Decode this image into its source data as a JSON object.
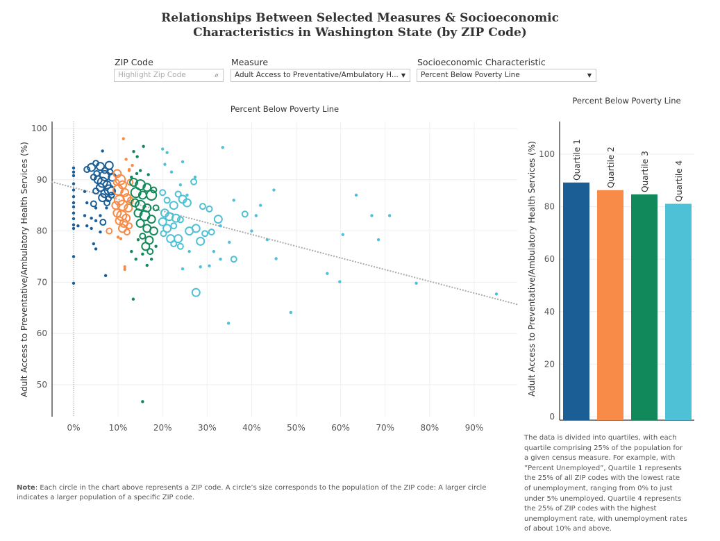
{
  "title": "Relationships Between Selected Measures & Socioeconomic Characteristics in Washington State (by ZIP Code)",
  "filters": {
    "zip": {
      "label": "ZIP Code",
      "placeholder": "Highlight Zip Code",
      "icon": "search-icon"
    },
    "measure": {
      "label": "Measure",
      "value": "Adult Access to Preventative/Ambulatory H..."
    },
    "socio": {
      "label": "Socioeconomic Characteristic",
      "value": "Percent Below Poverty Line"
    }
  },
  "colors": {
    "q1": "#1b5e96",
    "q2": "#f78b47",
    "q3": "#12895a",
    "q4": "#4fc1d6",
    "trend": "#aaaaaa"
  },
  "chart_data": [
    {
      "type": "scatter",
      "title": "Percent Below Poverty Line",
      "xlabel": "",
      "ylabel": "Adult Access to Preventative/Ambulatory Health Services (%)",
      "xlim": [
        -5,
        100
      ],
      "ylim": [
        44,
        101
      ],
      "xticks": [
        "0%",
        "10%",
        "20%",
        "30%",
        "40%",
        "50%",
        "60%",
        "70%",
        "80%",
        "90%"
      ],
      "xtick_values": [
        0,
        10,
        20,
        30,
        40,
        50,
        60,
        70,
        80,
        90
      ],
      "yticks": [
        50,
        60,
        70,
        80,
        90,
        100
      ],
      "grid": true,
      "trend_line": {
        "x": [
          -5,
          100
        ],
        "y": [
          89.6,
          65.6
        ]
      },
      "point_fields": [
        "percent_below_poverty",
        "access_pct",
        "size",
        "quartile"
      ],
      "points": [
        [
          0,
          92.3,
          0,
          1
        ],
        [
          0,
          91.5,
          0,
          1
        ],
        [
          0,
          90.8,
          0,
          1
        ],
        [
          0,
          89.2,
          0,
          1
        ],
        [
          0,
          88,
          0,
          1
        ],
        [
          0,
          86.7,
          0,
          1
        ],
        [
          0,
          85.5,
          0,
          1
        ],
        [
          0,
          84.7,
          0,
          1
        ],
        [
          0,
          83.5,
          0,
          1
        ],
        [
          0,
          82.4,
          0,
          1
        ],
        [
          0,
          81.2,
          0,
          1
        ],
        [
          0,
          80.5,
          0,
          1
        ],
        [
          0,
          75,
          0,
          1
        ],
        [
          0,
          69.8,
          0,
          1
        ],
        [
          3,
          92,
          1,
          1
        ],
        [
          4,
          92.4,
          2,
          1
        ],
        [
          5,
          93.2,
          1,
          1
        ],
        [
          6,
          92.6,
          2,
          1
        ],
        [
          7,
          91.8,
          1,
          1
        ],
        [
          8,
          92.8,
          2,
          1
        ],
        [
          4.5,
          90.5,
          1,
          1
        ],
        [
          5.5,
          90,
          2,
          1
        ],
        [
          6.5,
          89.5,
          3,
          1
        ],
        [
          7.5,
          89,
          2,
          1
        ],
        [
          8,
          88,
          3,
          1
        ],
        [
          6,
          88.5,
          2,
          1
        ],
        [
          5,
          87.8,
          1,
          1
        ],
        [
          7,
          87.3,
          2,
          1
        ],
        [
          8.5,
          87,
          1,
          1
        ],
        [
          6.5,
          86.5,
          2,
          1
        ],
        [
          7.5,
          85.5,
          1,
          1
        ],
        [
          8.7,
          90.5,
          2,
          1
        ],
        [
          8.2,
          91.5,
          1,
          1
        ],
        [
          7,
          90.8,
          3,
          1
        ],
        [
          5.2,
          91.2,
          1,
          1
        ],
        [
          6.5,
          95.6,
          0,
          1
        ],
        [
          2.5,
          87.7,
          0,
          1
        ],
        [
          3,
          85.5,
          0,
          1
        ],
        [
          4.5,
          85.3,
          1,
          1
        ],
        [
          5,
          84.5,
          0,
          1
        ],
        [
          6,
          83,
          0,
          1
        ],
        [
          7.4,
          84.5,
          0,
          1
        ],
        [
          2.5,
          83,
          0,
          1
        ],
        [
          4,
          82.5,
          0,
          1
        ],
        [
          5,
          82,
          0,
          1
        ],
        [
          6.6,
          81.7,
          1,
          1
        ],
        [
          3,
          81,
          0,
          1
        ],
        [
          4,
          80.5,
          0,
          1
        ],
        [
          1,
          81,
          0,
          1
        ],
        [
          6,
          79.8,
          0,
          1
        ],
        [
          4.5,
          77.5,
          0,
          1
        ],
        [
          5,
          76.5,
          0,
          1
        ],
        [
          7.2,
          71.3,
          0,
          1
        ],
        [
          8.5,
          87.8,
          2,
          1
        ],
        [
          7.8,
          86.3,
          1,
          1
        ],
        [
          9.8,
          91.2,
          2,
          2
        ],
        [
          10.5,
          90,
          3,
          2
        ],
        [
          11,
          89,
          2,
          2
        ],
        [
          10,
          88,
          3,
          2
        ],
        [
          11.5,
          87.5,
          2,
          2
        ],
        [
          12,
          86.5,
          2,
          2
        ],
        [
          10.3,
          86,
          3,
          2
        ],
        [
          9.5,
          85,
          2,
          2
        ],
        [
          11,
          85,
          3,
          2
        ],
        [
          12.3,
          84.5,
          2,
          2
        ],
        [
          9.8,
          83.5,
          2,
          2
        ],
        [
          10.8,
          83,
          3,
          2
        ],
        [
          11.8,
          82.5,
          2,
          2
        ],
        [
          10.3,
          82,
          2,
          2
        ],
        [
          11.3,
          81.5,
          2,
          2
        ],
        [
          12.5,
          81,
          1,
          2
        ],
        [
          9.6,
          89.5,
          1,
          2
        ],
        [
          12.7,
          89.5,
          1,
          2
        ],
        [
          11.2,
          98,
          0,
          2
        ],
        [
          11.8,
          94,
          0,
          2
        ],
        [
          12.5,
          91.8,
          0,
          2
        ],
        [
          13.2,
          92.8,
          0,
          2
        ],
        [
          12.5,
          92,
          0,
          2
        ],
        [
          11,
          80.5,
          2,
          2
        ],
        [
          12,
          79.8,
          1,
          2
        ],
        [
          8,
          80,
          1,
          2
        ],
        [
          10,
          78.8,
          0,
          2
        ],
        [
          11.5,
          73,
          0,
          2
        ],
        [
          11.5,
          72.5,
          0,
          2
        ],
        [
          10.6,
          78.5,
          0,
          2
        ],
        [
          12.8,
          86,
          1,
          2
        ],
        [
          13.5,
          89.5,
          2,
          3
        ],
        [
          15,
          89,
          3,
          3
        ],
        [
          16.5,
          88.5,
          2,
          3
        ],
        [
          14,
          87.5,
          3,
          3
        ],
        [
          15.5,
          87,
          2,
          3
        ],
        [
          17.5,
          87,
          3,
          3
        ],
        [
          13.8,
          85.5,
          2,
          3
        ],
        [
          15,
          85,
          3,
          3
        ],
        [
          16.5,
          84.5,
          2,
          3
        ],
        [
          14.5,
          83.5,
          2,
          3
        ],
        [
          16,
          83,
          3,
          3
        ],
        [
          17.5,
          82.3,
          2,
          3
        ],
        [
          15,
          81.5,
          2,
          3
        ],
        [
          16.5,
          80.5,
          2,
          3
        ],
        [
          18,
          80,
          2,
          3
        ],
        [
          15.5,
          79,
          1,
          3
        ],
        [
          17,
          78.2,
          2,
          3
        ],
        [
          16.2,
          77,
          2,
          3
        ],
        [
          17.2,
          76,
          1,
          3
        ],
        [
          18.5,
          84.5,
          1,
          3
        ],
        [
          13.5,
          95.5,
          0,
          3
        ],
        [
          15.7,
          96.5,
          0,
          3
        ],
        [
          14.3,
          94.5,
          0,
          3
        ],
        [
          13,
          90.5,
          0,
          3
        ],
        [
          15,
          91.8,
          0,
          3
        ],
        [
          16.8,
          91,
          0,
          3
        ],
        [
          14.2,
          91.2,
          0,
          3
        ],
        [
          18,
          88,
          1,
          3
        ],
        [
          13,
          76,
          0,
          3
        ],
        [
          14,
          74.5,
          0,
          3
        ],
        [
          15.5,
          75.5,
          0,
          3
        ],
        [
          17.5,
          74.5,
          0,
          3
        ],
        [
          16.5,
          73.3,
          0,
          3
        ],
        [
          13.4,
          66.7,
          0,
          3
        ],
        [
          15.5,
          46.7,
          0,
          3
        ],
        [
          18.5,
          77,
          0,
          3
        ],
        [
          14.5,
          78.3,
          0,
          3
        ],
        [
          20,
          87.5,
          1,
          4
        ],
        [
          21,
          86,
          1,
          4
        ],
        [
          22.5,
          85,
          2,
          4
        ],
        [
          23.5,
          87.2,
          1,
          4
        ],
        [
          24.5,
          86.2,
          2,
          4
        ],
        [
          25.5,
          85.5,
          2,
          4
        ],
        [
          20.5,
          83.5,
          2,
          4
        ],
        [
          21.5,
          82.8,
          2,
          4
        ],
        [
          23,
          82.5,
          2,
          4
        ],
        [
          24,
          82.2,
          1,
          4
        ],
        [
          20,
          81.8,
          2,
          4
        ],
        [
          21,
          80.5,
          2,
          4
        ],
        [
          22.5,
          81,
          1,
          4
        ],
        [
          20.2,
          79.5,
          1,
          4
        ],
        [
          21.8,
          78.5,
          2,
          4
        ],
        [
          23.5,
          78.5,
          2,
          4
        ],
        [
          24,
          77,
          1,
          4
        ],
        [
          22.5,
          77.5,
          1,
          4
        ],
        [
          26,
          80,
          2,
          4
        ],
        [
          27.5,
          80.5,
          2,
          4
        ],
        [
          29.5,
          79.5,
          1,
          4
        ],
        [
          28.5,
          78,
          2,
          4
        ],
        [
          31,
          79.8,
          1,
          4
        ],
        [
          32.5,
          82.3,
          2,
          4
        ],
        [
          30.5,
          84.3,
          1,
          4
        ],
        [
          29,
          84.8,
          1,
          4
        ],
        [
          27,
          89.6,
          1,
          4
        ],
        [
          27.3,
          90.5,
          0,
          4
        ],
        [
          20,
          96,
          0,
          4
        ],
        [
          21,
          95.3,
          0,
          4
        ],
        [
          24.5,
          93.5,
          0,
          4
        ],
        [
          22,
          91.5,
          0,
          4
        ],
        [
          20.5,
          93,
          0,
          4
        ],
        [
          24,
          89,
          0,
          4
        ],
        [
          25.5,
          87,
          0,
          4
        ],
        [
          33.5,
          96.3,
          0,
          4
        ],
        [
          27.5,
          68,
          2,
          4
        ],
        [
          24.5,
          72.6,
          0,
          4
        ],
        [
          28.5,
          73,
          0,
          4
        ],
        [
          30.5,
          73.2,
          0,
          4
        ],
        [
          34.8,
          62,
          0,
          4
        ],
        [
          36,
          74.5,
          1,
          4
        ],
        [
          33,
          74.5,
          0,
          4
        ],
        [
          35,
          77.8,
          0,
          4
        ],
        [
          38.5,
          83.3,
          1,
          4
        ],
        [
          40,
          80,
          0,
          4
        ],
        [
          42,
          85,
          0,
          4
        ],
        [
          41,
          83,
          0,
          4
        ],
        [
          43.5,
          78.3,
          0,
          4
        ],
        [
          45,
          88,
          0,
          4
        ],
        [
          45.5,
          74.6,
          0,
          4
        ],
        [
          48.8,
          64.1,
          0,
          4
        ],
        [
          57,
          71.7,
          0,
          4
        ],
        [
          59.8,
          70.1,
          0,
          4
        ],
        [
          60.5,
          79.3,
          0,
          4
        ],
        [
          63.5,
          87,
          0,
          4
        ],
        [
          67,
          83,
          0,
          4
        ],
        [
          68.5,
          78.3,
          0,
          4
        ],
        [
          71,
          83,
          0,
          4
        ],
        [
          77,
          69.8,
          0,
          4
        ],
        [
          95,
          67.7,
          0,
          4
        ],
        [
          36,
          86,
          0,
          4
        ],
        [
          33,
          81,
          0,
          4
        ],
        [
          26,
          76,
          0,
          4
        ],
        [
          31.5,
          76,
          0,
          4
        ]
      ]
    },
    {
      "type": "bar",
      "title": "Percent Below Poverty Line",
      "ylabel": "Adult Access to Preventative/Ambulatory Health Services (%)",
      "categories": [
        "Quartile 1",
        "Quartile 2",
        "Quartile 3",
        "Quartile 4"
      ],
      "values": [
        89.2,
        86.3,
        84.7,
        81.1
      ],
      "ylim": [
        0,
        112
      ],
      "yticks": [
        0,
        20,
        40,
        60,
        80,
        100
      ],
      "grid": true
    }
  ],
  "notes": {
    "note_label": "Note",
    "note_text": ": Each circle in the chart above represents a ZIP code. A circle’s size corresponds to the population of the ZIP code: A larger circle indicates a larger population of a specific ZIP code.",
    "quartile_desc": "The data is divided into quartiles, with each quartile comprising 25% of the population for a given census measure. For example, with ”Percent Unemployed”, Quartile 1 represents the  25% of all ZIP codes with the lowest rate of unemployment, ranging from 0% to just under 5% unemployed. Quartile 4 represents the 25% of ZIP codes with the highest unemployment rate, with unemployment rates of about 10% and above."
  }
}
